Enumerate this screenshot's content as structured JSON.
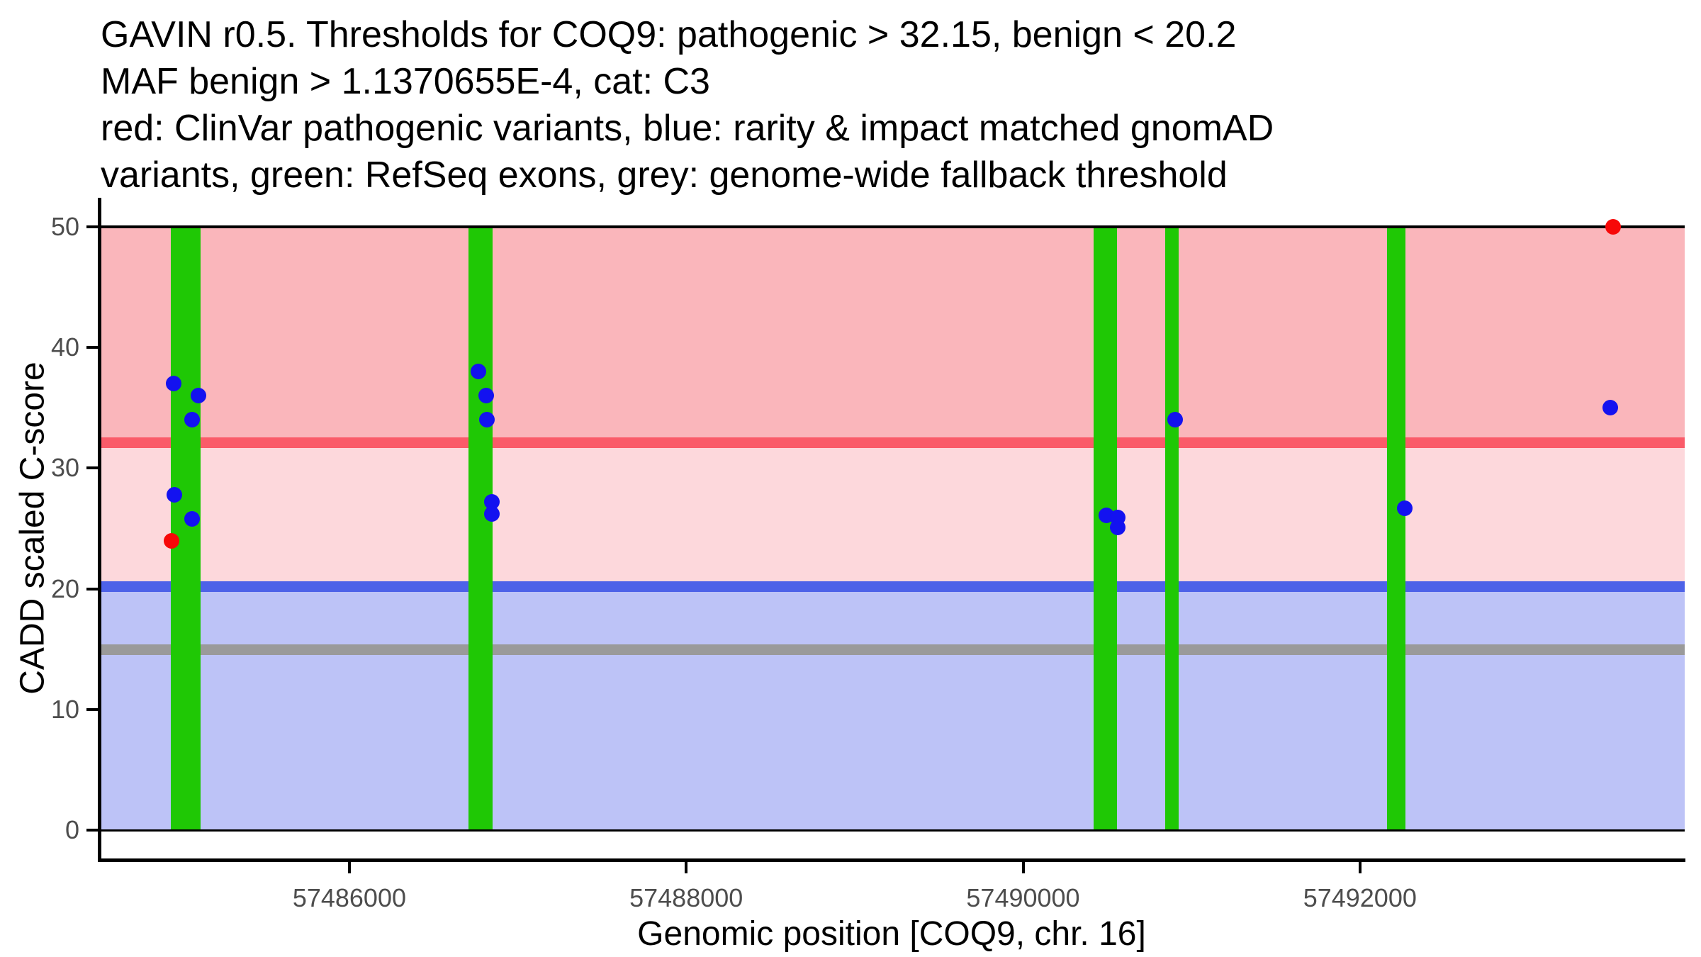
{
  "title": {
    "lines": [
      "GAVIN r0.5. Thresholds for COQ9: pathogenic > 32.15, benign < 20.2",
      "MAF benign > 1.1370655E-4, cat: C3",
      "red: ClinVar pathogenic variants, blue: rarity & impact matched gnomAD",
      "variants, green: RefSeq exons, grey: genome-wide fallback threshold"
    ]
  },
  "chart_data": {
    "type": "scatter",
    "title": "GAVIN r0.5. Thresholds for COQ9: pathogenic > 32.15, benign < 20.2; MAF benign > 1.1370655E-4, cat: C3; red: ClinVar pathogenic variants, blue: rarity & impact matched gnomAD variants, green: RefSeq exons, grey: genome-wide fallback threshold",
    "xlabel": "Genomic position [COQ9, chr. 16]",
    "ylabel": "CADD scaled C-score",
    "xlim": [
      57484515,
      57493928
    ],
    "ylim": [
      0,
      50
    ],
    "x_ticks": [
      57486000,
      57488000,
      57490000,
      57492000
    ],
    "y_ticks": [
      0,
      10,
      20,
      30,
      40,
      50
    ],
    "grid": false,
    "legend": "none",
    "thresholds": [
      {
        "name": "pathogenic",
        "value": 32.15,
        "color": "#fa5b69"
      },
      {
        "name": "benign",
        "value": 20.2,
        "color": "#4d62e8"
      },
      {
        "name": "genome-wide-fallback",
        "value": 15,
        "color": "#9a9a9a"
      }
    ],
    "regions": [
      {
        "name": "pathogenic-zone",
        "from": 32.15,
        "to": 50,
        "color": "#fab6bb"
      },
      {
        "name": "uncertain-zone",
        "from": 20.2,
        "to": 32.15,
        "color": "#fdd8dc"
      },
      {
        "name": "benign-zone",
        "from": 0,
        "to": 20.2,
        "color": "#bdc3f7"
      }
    ],
    "exon_color": "#1fc805",
    "exons": [
      {
        "start": 57484940,
        "end": 57485116
      },
      {
        "start": 57486707,
        "end": 57486850
      },
      {
        "start": 57490418,
        "end": 57490557
      },
      {
        "start": 57490843,
        "end": 57490923
      },
      {
        "start": 57492161,
        "end": 57492270
      }
    ],
    "series": [
      {
        "name": "ClinVar pathogenic variants",
        "color": "#f70808",
        "points": [
          {
            "x": 57484944,
            "y": 24.0
          },
          {
            "x": 57493503,
            "y": 50.0
          }
        ]
      },
      {
        "name": "rarity & impact matched gnomAD variants",
        "color": "#1312f0",
        "points": [
          {
            "x": 57484956,
            "y": 37.0
          },
          {
            "x": 57485104,
            "y": 36.0
          },
          {
            "x": 57485066,
            "y": 34.0
          },
          {
            "x": 57484961,
            "y": 27.8
          },
          {
            "x": 57485066,
            "y": 25.8
          },
          {
            "x": 57486766,
            "y": 38.0
          },
          {
            "x": 57486812,
            "y": 36.0
          },
          {
            "x": 57486816,
            "y": 34.0
          },
          {
            "x": 57486846,
            "y": 27.2
          },
          {
            "x": 57486846,
            "y": 26.2
          },
          {
            "x": 57490494,
            "y": 26.1
          },
          {
            "x": 57490561,
            "y": 25.9
          },
          {
            "x": 57490561,
            "y": 25.1
          },
          {
            "x": 57490902,
            "y": 34.0
          },
          {
            "x": 57492266,
            "y": 26.7
          },
          {
            "x": 57493486,
            "y": 35.0
          }
        ]
      }
    ]
  },
  "colors": {
    "axis": "#000000",
    "tick_label": "#4d4d4d",
    "boundary_line": "#000000"
  }
}
